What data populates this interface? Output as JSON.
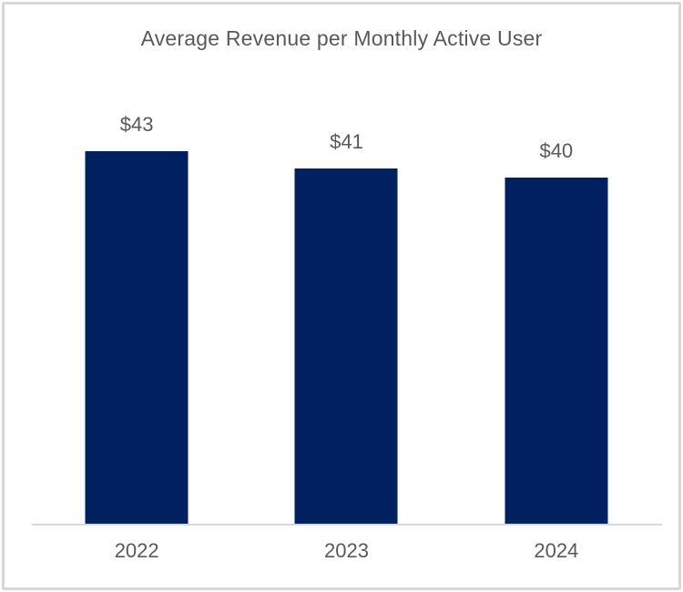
{
  "title": "Average Revenue per Monthly Active User",
  "chart_data": {
    "type": "bar",
    "title": "Average Revenue per Monthly Active User",
    "categories": [
      "2022",
      "2023",
      "2024"
    ],
    "values": [
      43,
      41,
      40
    ],
    "data_labels": [
      "$43",
      "$41",
      "$40"
    ],
    "xlabel": "",
    "ylabel": "",
    "ylim": [
      0,
      45
    ],
    "grid": false,
    "legend_position": "none",
    "bar_color": "#002060",
    "text_color": "#595959",
    "axis_line_color": "#d9d9d9",
    "background_color": "#ffffff"
  }
}
